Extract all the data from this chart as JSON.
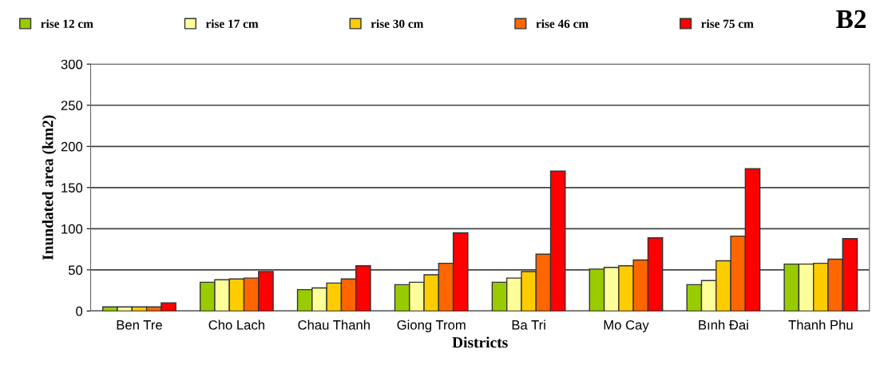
{
  "chart_data": {
    "type": "bar",
    "title": "B2",
    "xlabel": "Districts",
    "ylabel": "Inundated area (km2)",
    "categories": [
      "Ben Tre",
      "Cho Lach",
      "Chau Thanh",
      "Giong Trom",
      "Ba Tri",
      "Mo Cay",
      "Bınh Đai",
      "Thanh Phu"
    ],
    "series": [
      {
        "name": "rise 12 cm",
        "color": "#99cc00",
        "values": [
          5,
          35,
          26,
          32,
          35,
          51,
          32,
          57
        ]
      },
      {
        "name": "rise 17 cm",
        "color": "#ffff99",
        "values": [
          5,
          38,
          28,
          35,
          40,
          53,
          37,
          57
        ]
      },
      {
        "name": "rise 30 cm",
        "color": "#ffcc00",
        "values": [
          5,
          39,
          34,
          44,
          48,
          55,
          61,
          58
        ]
      },
      {
        "name": "rise 46 cm",
        "color": "#ff6600",
        "values": [
          5,
          40,
          39,
          58,
          69,
          62,
          91,
          63
        ]
      },
      {
        "name": "rise 75 cm",
        "color": "#ff0000",
        "values": [
          10,
          48,
          55,
          95,
          170,
          89,
          173,
          88
        ]
      }
    ],
    "ylim": [
      0,
      300
    ],
    "yticks": [
      0,
      50,
      100,
      150,
      200,
      250,
      300
    ],
    "grid": "y",
    "legend": "top"
  }
}
